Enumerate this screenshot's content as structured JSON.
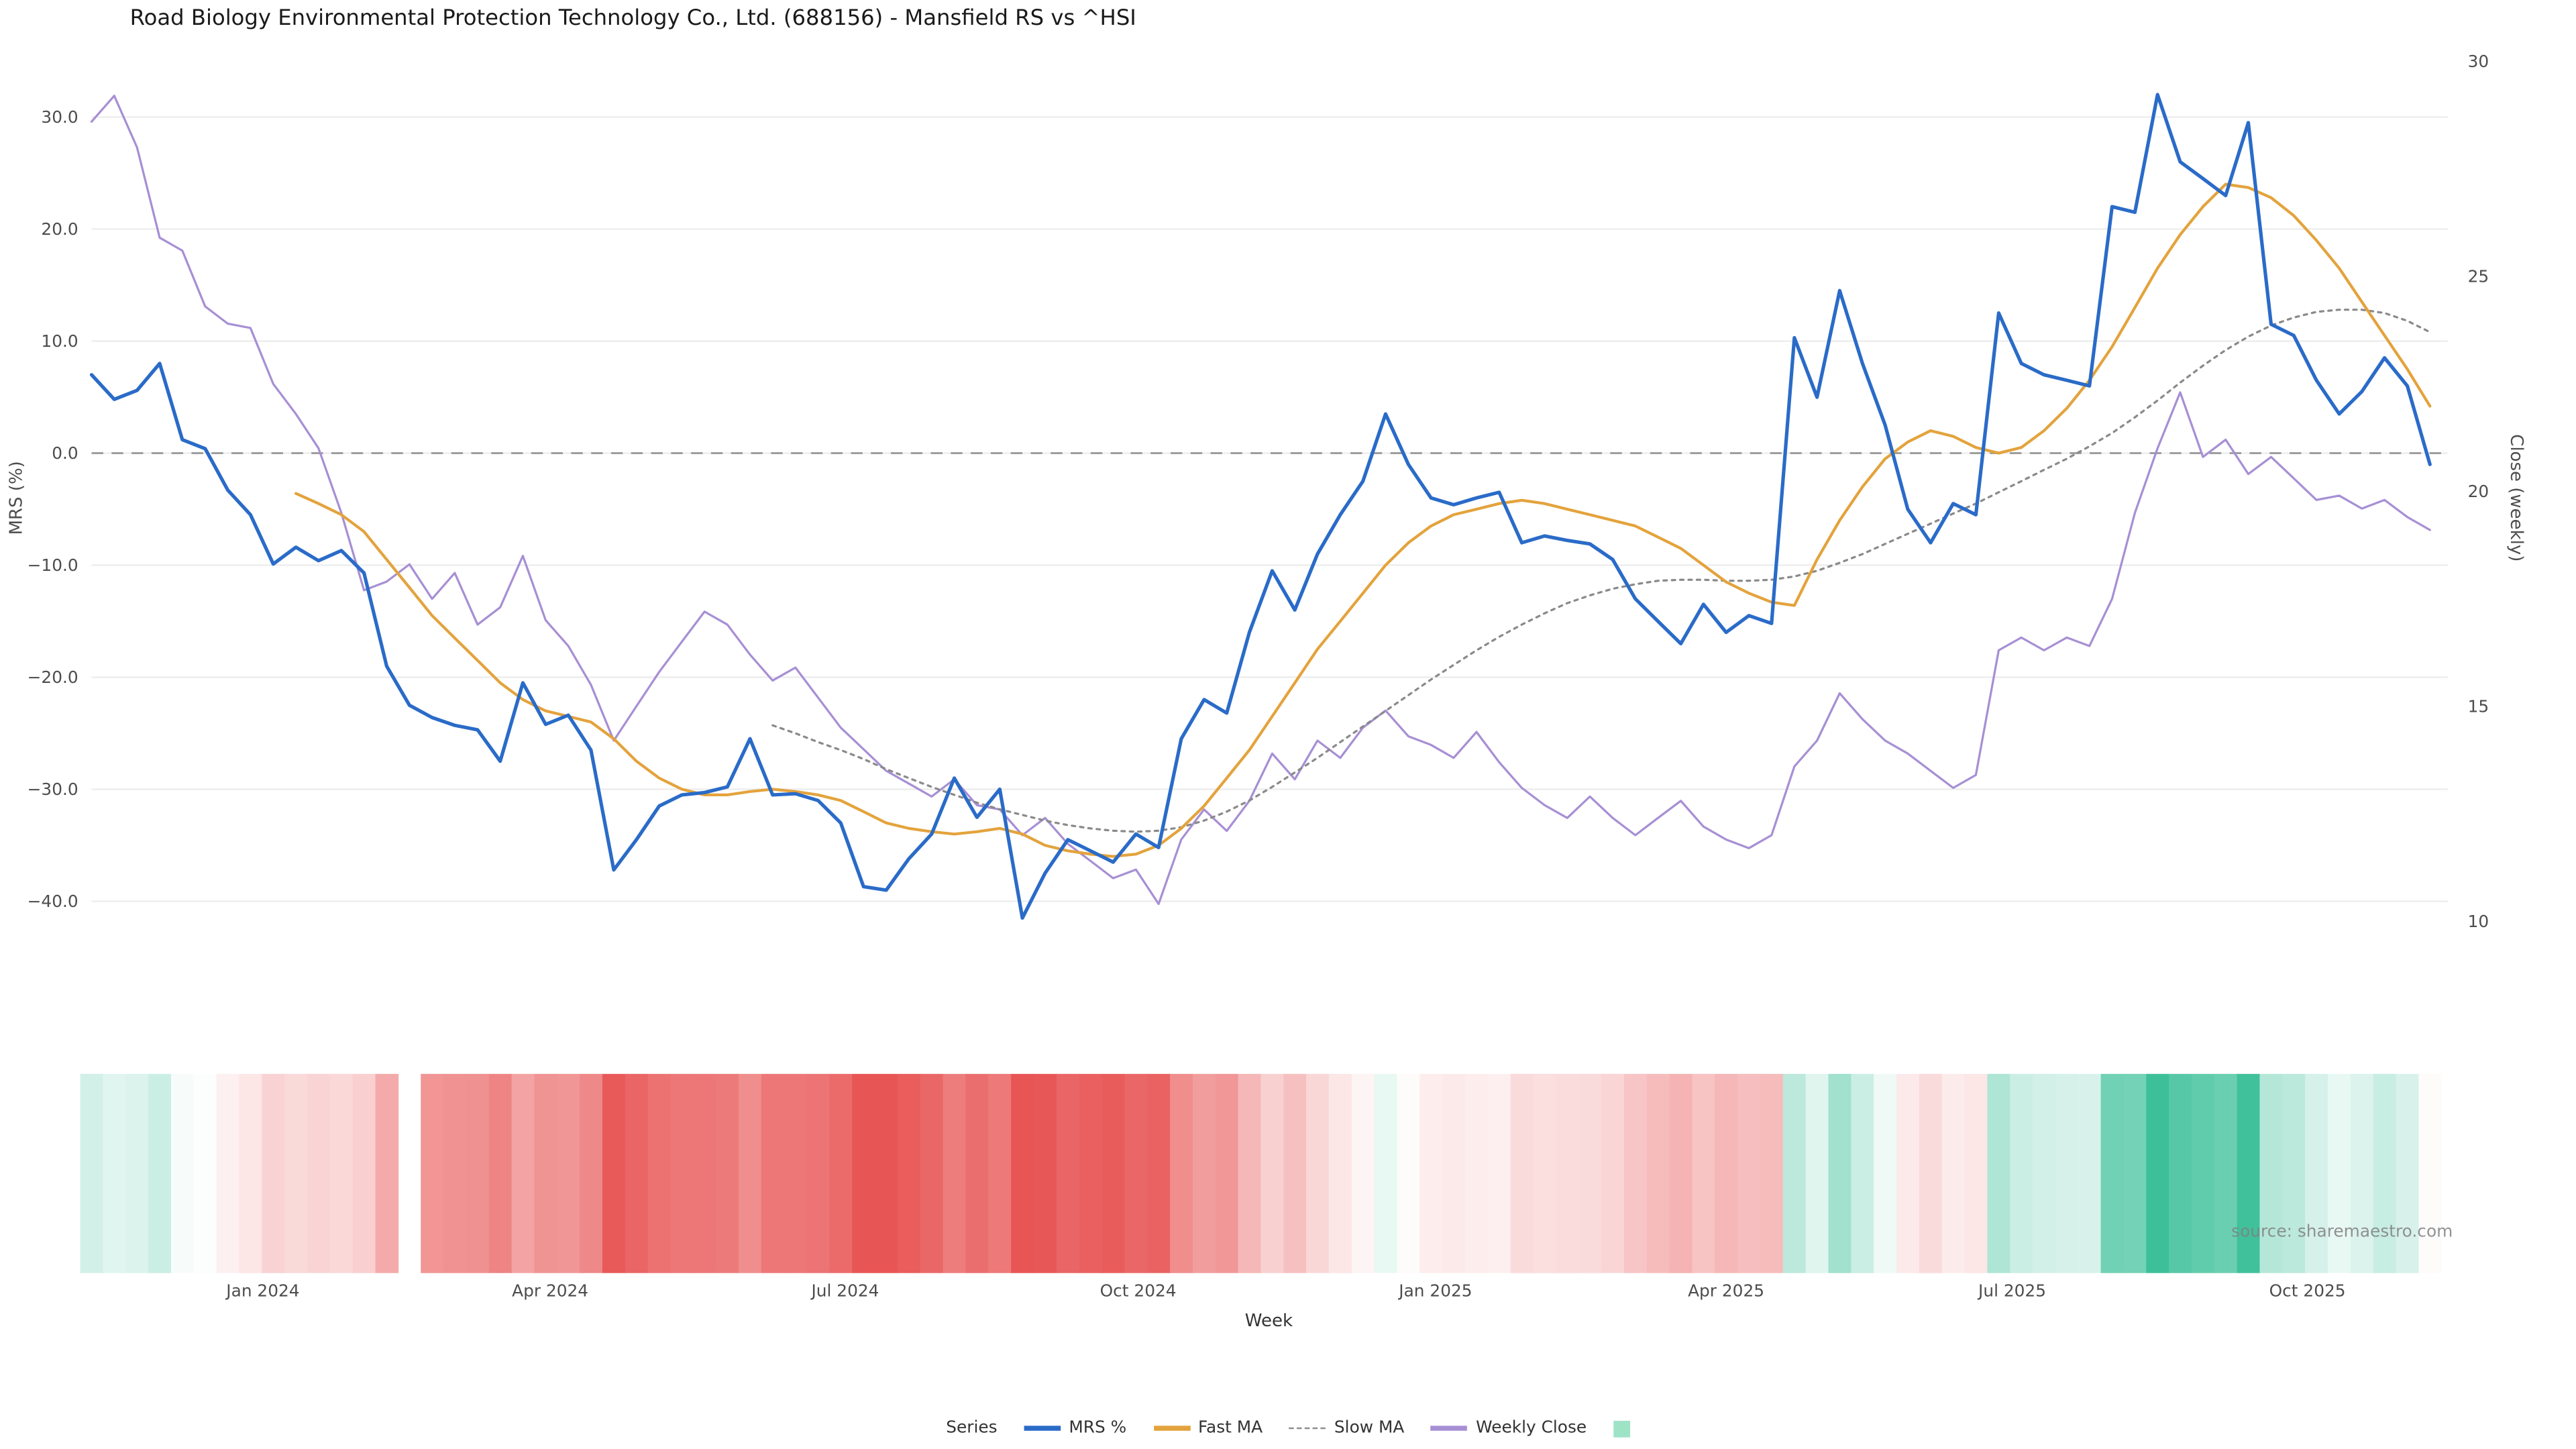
{
  "source_watermark": "source: sharemaestro.com",
  "legend": {
    "title": "Series"
  },
  "colors": {
    "mrs": "#2a6bc8",
    "fast_ma": "#e3a33c",
    "slow_ma": "#8a8a8a",
    "weekly_close": "#a78fd4",
    "zero_line": "#9e9e9e",
    "grid": "#ededed",
    "heat_negative": "#e85555",
    "heat_positive": "#3dc099",
    "legend_swatch": "#9fe3c7",
    "tick_text": "#4d4d4d",
    "source_text": "#8c8c8c"
  },
  "chart_data": {
    "type": "line",
    "title": "Road Biology Environmental Protection Technology Co., Ltd. (688156) - Mansfield RS vs ^HSI",
    "xlabel": "Week",
    "ylabel_left": "MRS (%)",
    "ylabel_right": "Close (weekly)",
    "grid": "horizontal",
    "legend_position": "bottom",
    "zero_line_left_axis": 0,
    "ylim_left": [
      -42.5,
      35
    ],
    "ylim_right": [
      9.8,
      30
    ],
    "weeks": 104,
    "x_axis": {
      "ticks": [
        {
          "label": "Jan 2024",
          "week": 7.55
        },
        {
          "label": "Apr 2024",
          "week": 20.2
        },
        {
          "label": "Jul 2024",
          "week": 33.2
        },
        {
          "label": "Oct 2024",
          "week": 46.1
        },
        {
          "label": "Jan 2025",
          "week": 59.2
        },
        {
          "label": "Apr 2025",
          "week": 72.0
        },
        {
          "label": "Jul 2025",
          "week": 84.6
        },
        {
          "label": "Oct 2025",
          "week": 97.6
        }
      ]
    },
    "y_left": {
      "ticks": [
        "30.0",
        "20.0",
        "10.0",
        "0.0",
        "−10.0",
        "−20.0",
        "−30.0",
        "−40.0"
      ],
      "tick_values": [
        30,
        20,
        10,
        0,
        -10,
        -20,
        -30,
        -40
      ]
    },
    "y_right": {
      "ticks": [
        "30",
        "25",
        "20",
        "15",
        "10"
      ],
      "tick_values": [
        30,
        25,
        20,
        15,
        10
      ]
    },
    "series": [
      {
        "name": "MRS %",
        "slug": "mrs",
        "axis": "left",
        "color_key": "mrs",
        "style": "solid",
        "width": 2.1,
        "values": [
          7.0,
          4.8,
          5.6,
          8.0,
          1.2,
          0.4,
          -3.3,
          -5.5,
          -9.9,
          -8.4,
          -9.6,
          -8.7,
          -10.7,
          -19.0,
          -22.5,
          -23.6,
          -24.3,
          -24.7,
          -27.5,
          -20.5,
          -24.2,
          -23.4,
          -26.5,
          -37.2,
          -34.5,
          -31.5,
          -30.5,
          -30.3,
          -29.8,
          -25.5,
          -30.5,
          -30.4,
          -31.0,
          -33.0,
          -38.7,
          -39.0,
          -36.2,
          -34.0,
          -29.0,
          -32.5,
          -30.0,
          -41.5,
          -37.5,
          -34.5,
          -35.5,
          -36.5,
          -34.0,
          -35.2,
          -25.5,
          -22.0,
          -23.2,
          -16.0,
          -10.5,
          -14.0,
          -9.0,
          -5.5,
          -2.5,
          3.5,
          -1.0,
          -4.0,
          -4.6,
          -4.0,
          -3.5,
          -8.0,
          -7.4,
          -7.8,
          -8.1,
          -9.5,
          -13.0,
          -15.0,
          -17.0,
          -13.5,
          -16.0,
          -14.5,
          -15.2,
          10.3,
          5.0,
          14.5,
          8.0,
          2.5,
          -5.0,
          -8.0,
          -4.5,
          -5.5,
          12.5,
          8.0,
          7.0,
          6.5,
          6.0,
          22.0,
          21.5,
          32.0,
          26.0,
          24.5,
          23.0,
          29.5,
          11.5,
          10.5,
          6.5,
          3.5,
          5.5,
          8.5,
          6.0,
          -1.0
        ]
      },
      {
        "name": "Fast MA",
        "slug": "fast-ma",
        "axis": "left",
        "color_key": "fast_ma",
        "style": "solid",
        "width": 1.7,
        "values": [
          null,
          null,
          null,
          null,
          null,
          null,
          null,
          null,
          null,
          -3.6,
          -4.5,
          -5.5,
          -7.0,
          -9.5,
          -12.0,
          -14.5,
          -16.5,
          -18.5,
          -20.5,
          -22.0,
          -23.0,
          -23.5,
          -24.0,
          -25.5,
          -27.5,
          -29.0,
          -30.0,
          -30.5,
          -30.5,
          -30.2,
          -30.0,
          -30.2,
          -30.5,
          -31.0,
          -32.0,
          -33.0,
          -33.5,
          -33.8,
          -34.0,
          -33.8,
          -33.5,
          -34.0,
          -35.0,
          -35.5,
          -35.8,
          -36.0,
          -35.8,
          -35.0,
          -33.5,
          -31.5,
          -29.0,
          -26.5,
          -23.5,
          -20.5,
          -17.5,
          -15.0,
          -12.5,
          -10.0,
          -8.0,
          -6.5,
          -5.5,
          -5.0,
          -4.5,
          -4.2,
          -4.5,
          -5.0,
          -5.5,
          -6.0,
          -6.5,
          -7.5,
          -8.5,
          -10.0,
          -11.5,
          -12.5,
          -13.3,
          -13.6,
          -9.5,
          -6.0,
          -3.0,
          -0.5,
          1.0,
          2.0,
          1.5,
          0.5,
          0.0,
          0.5,
          2.0,
          4.0,
          6.5,
          9.5,
          13.0,
          16.5,
          19.5,
          22.0,
          24.0,
          23.7,
          22.8,
          21.2,
          19.0,
          16.5,
          13.5,
          10.5,
          7.5,
          4.2
        ]
      },
      {
        "name": "Slow MA",
        "slug": "slow-ma",
        "axis": "left",
        "color_key": "slow_ma",
        "style": "dotted",
        "width": 1.3,
        "values": [
          null,
          null,
          null,
          null,
          null,
          null,
          null,
          null,
          null,
          null,
          null,
          null,
          null,
          null,
          null,
          null,
          null,
          null,
          null,
          null,
          null,
          null,
          null,
          null,
          null,
          null,
          null,
          null,
          null,
          null,
          -24.3,
          -25.0,
          -25.8,
          -26.5,
          -27.3,
          -28.2,
          -29.0,
          -29.8,
          -30.5,
          -31.2,
          -31.8,
          -32.3,
          -32.8,
          -33.2,
          -33.5,
          -33.7,
          -33.8,
          -33.7,
          -33.4,
          -32.8,
          -32.0,
          -31.0,
          -29.8,
          -28.5,
          -27.2,
          -25.8,
          -24.4,
          -23.0,
          -21.6,
          -20.2,
          -18.9,
          -17.6,
          -16.4,
          -15.3,
          -14.3,
          -13.4,
          -12.7,
          -12.1,
          -11.7,
          -11.4,
          -11.3,
          -11.3,
          -11.4,
          -11.4,
          -11.3,
          -11.0,
          -10.5,
          -9.8,
          -9.0,
          -8.1,
          -7.2,
          -6.3,
          -5.4,
          -4.5,
          -3.5,
          -2.5,
          -1.5,
          -0.5,
          0.6,
          1.8,
          3.2,
          4.7,
          6.3,
          7.8,
          9.2,
          10.4,
          11.4,
          12.1,
          12.6,
          12.8,
          12.8,
          12.5,
          11.8,
          10.8
        ]
      },
      {
        "name": "Weekly Close",
        "slug": "weekly-close",
        "axis": "right",
        "color_key": "weekly_close",
        "style": "solid",
        "width": 1.3,
        "values": [
          28.6,
          29.2,
          28.0,
          25.9,
          25.6,
          24.3,
          23.9,
          23.8,
          22.5,
          21.8,
          21.0,
          19.5,
          17.7,
          17.9,
          18.3,
          17.5,
          18.1,
          16.9,
          17.3,
          18.5,
          17.0,
          16.4,
          15.5,
          14.2,
          15.0,
          15.8,
          16.5,
          17.2,
          16.9,
          16.2,
          15.6,
          15.9,
          15.2,
          14.5,
          14.0,
          13.5,
          13.2,
          12.9,
          13.3,
          12.7,
          12.6,
          12.0,
          12.4,
          11.8,
          11.4,
          11.0,
          11.2,
          10.4,
          11.9,
          12.6,
          12.1,
          12.8,
          13.9,
          13.3,
          14.2,
          13.8,
          14.5,
          14.9,
          14.3,
          14.1,
          13.8,
          14.4,
          13.7,
          13.1,
          12.7,
          12.4,
          12.9,
          12.4,
          12.0,
          12.4,
          12.8,
          12.2,
          11.9,
          11.7,
          12.0,
          13.6,
          14.2,
          15.3,
          14.7,
          14.2,
          13.9,
          13.5,
          13.1,
          13.4,
          16.3,
          16.6,
          16.3,
          16.6,
          16.4,
          17.5,
          19.5,
          21.0,
          22.3,
          20.8,
          21.2,
          20.4,
          20.8,
          20.3,
          19.8,
          19.9,
          19.6,
          19.8,
          19.4,
          19.1
        ]
      }
    ],
    "heatmap": {
      "description": "weekly MRS % color strip, red negative / green positive",
      "values_from": "MRS %",
      "gap_weeks": [
        14
      ]
    }
  }
}
